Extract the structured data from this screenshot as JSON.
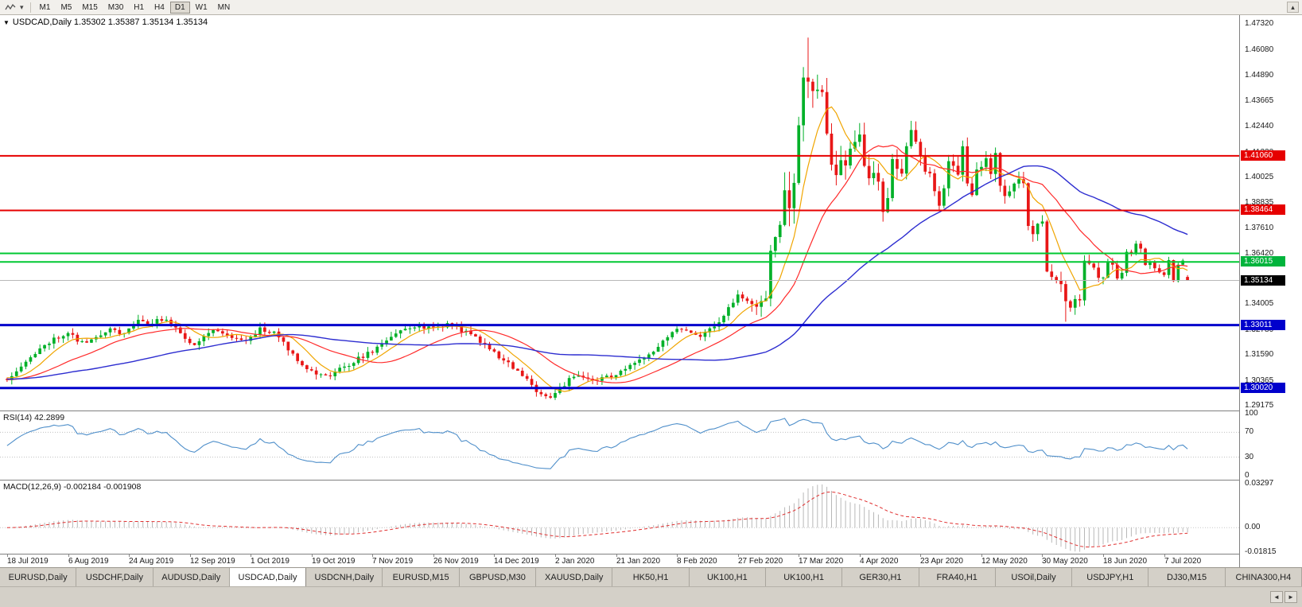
{
  "icons": {
    "chevron_down": "▾",
    "collapse_up": "▴",
    "title_marker": "▼",
    "tab_prev": "◄",
    "tab_next": "►"
  },
  "toolbar": {
    "timeframes": [
      "M1",
      "M5",
      "M15",
      "M30",
      "H1",
      "H4",
      "D1",
      "W1",
      "MN"
    ],
    "active_timeframe": "D1"
  },
  "chart": {
    "symbol": "USDCAD",
    "period": "Daily",
    "title": "USDCAD,Daily 1.35302 1.35387 1.35134 1.35134"
  },
  "panels": {
    "rsi_label": "RSI(14) 42.2899",
    "macd_label": "MACD(12,26,9) -0.002184 -0.001908"
  },
  "price_axis": {
    "ticks": [
      "1.47320",
      "1.46080",
      "1.44890",
      "1.43665",
      "1.42440",
      "1.41220",
      "1.40025",
      "1.38835",
      "1.37610",
      "1.36420",
      "1.35195",
      "1.34005",
      "1.32780",
      "1.31590",
      "1.30365",
      "1.29175"
    ],
    "badges": [
      {
        "value": "1.41060",
        "price": 1.4106,
        "color": "#e60000"
      },
      {
        "value": "1.38464",
        "price": 1.38464,
        "color": "#e60000"
      },
      {
        "value": "1.36015",
        "price": 1.36015,
        "color": "#00b43c"
      },
      {
        "value": "1.35134",
        "price": 1.35134,
        "color": "#000000"
      },
      {
        "value": "1.33011",
        "price": 1.33011,
        "color": "#0000cc"
      },
      {
        "value": "1.30020",
        "price": 1.3002,
        "color": "#0000cc"
      }
    ]
  },
  "rsi_axis": [
    {
      "label": "100",
      "value": 100
    },
    {
      "label": "70",
      "value": 70
    },
    {
      "label": "30",
      "value": 30
    },
    {
      "label": "0",
      "value": 0
    }
  ],
  "macd_axis": [
    {
      "label": "0.03297",
      "value": 0.03297
    },
    {
      "label": "0.00",
      "value": 0
    },
    {
      "label": "-0.01815",
      "value": -0.01815
    }
  ],
  "date_axis": [
    "18 Jul 2019",
    "6 Aug 2019",
    "24 Aug 2019",
    "12 Sep 2019",
    "1 Oct 2019",
    "19 Oct 2019",
    "7 Nov 2019",
    "26 Nov 2019",
    "14 Dec 2019",
    "2 Jan 2020",
    "21 Jan 2020",
    "8 Feb 2020",
    "27 Feb 2020",
    "17 Mar 2020",
    "4 Apr 2020",
    "23 Apr 2020",
    "12 May 2020",
    "30 May 2020",
    "18 Jun 2020",
    "7 Jul 2020"
  ],
  "hlines": [
    {
      "price": 1.35134,
      "color": "#b8b8b8",
      "width": 1
    },
    {
      "price": 1.4106,
      "color": "#e60000",
      "width": 2
    },
    {
      "price": 1.38464,
      "color": "#e60000",
      "width": 2
    },
    {
      "price": 1.3642,
      "color": "#00c832",
      "width": 2
    },
    {
      "price": 1.36015,
      "color": "#00c832",
      "width": 2
    },
    {
      "price": 1.33011,
      "color": "#0000cc",
      "width": 3
    },
    {
      "price": 1.3002,
      "color": "#0000cc",
      "width": 3
    }
  ],
  "tabs": {
    "items": [
      "EURUSD,Daily",
      "USDCHF,Daily",
      "AUDUSD,Daily",
      "USDCAD,Daily",
      "USDCNH,Daily",
      "EURUSD,M15",
      "GBPUSD,M30",
      "XAUUSD,Daily",
      "HK50,H1",
      "UK100,H1",
      "UK100,H1",
      "GER30,H1",
      "FRA40,H1",
      "USOil,Daily",
      "USDJPY,H1",
      "DJ30,M15",
      "CHINA300,H4"
    ],
    "active_index": 3
  },
  "chart_data": {
    "type": "candlestick",
    "symbol": "USDCAD",
    "timeframe": "Daily",
    "title": "USDCAD,Daily",
    "current_price": 1.35134,
    "last_candle": {
      "o": 1.35302,
      "h": 1.35387,
      "l": 1.35134,
      "c": 1.35134
    },
    "key_levels": [
      1.4106,
      1.38464,
      1.3642,
      1.36015,
      1.33011,
      1.3002
    ],
    "price_range": [
      1.2895,
      1.4775
    ],
    "macd_range": [
      -0.019537,
      0.035415
    ],
    "n_candles": 253,
    "seed": 11,
    "colors": {
      "up": "#00b028",
      "down": "#e81717",
      "ma_fast": "#f0a500",
      "ma_mid": "#ff2a2a",
      "ma_slow": "#2d2dd0",
      "rsi": "#4f8fca",
      "rsi_level": "#c0c0c0",
      "macd_hist": "#b8b8b8",
      "macd_signal": "#e03030"
    },
    "ma_periods": {
      "fast": 8,
      "mid": 21,
      "slow": 55
    },
    "rsi_period": 14,
    "rsi_levels": [
      70,
      30
    ],
    "macd_params": [
      12,
      26,
      9
    ],
    "macd_pos_peak": 0.0325,
    "macd_neg_peak": 0.0181,
    "forced_extremes": [
      {
        "index": 116,
        "low": 1.2952
      },
      {
        "index": 171,
        "high": 1.4668
      },
      {
        "index": 226,
        "low": 1.3317
      }
    ],
    "price_anchors": [
      [
        0,
        1.3045
      ],
      [
        2,
        1.309
      ],
      [
        4,
        1.313
      ],
      [
        6,
        1.316
      ],
      [
        8,
        1.321
      ],
      [
        10,
        1.3235
      ],
      [
        13,
        1.327
      ],
      [
        15,
        1.323
      ],
      [
        17,
        1.3215
      ],
      [
        19,
        1.324
      ],
      [
        22,
        1.329
      ],
      [
        24,
        1.3265
      ],
      [
        26,
        1.3275
      ],
      [
        28,
        1.333
      ],
      [
        30,
        1.33
      ],
      [
        32,
        1.332
      ],
      [
        34,
        1.3335
      ],
      [
        36,
        1.329
      ],
      [
        38,
        1.323
      ],
      [
        40,
        1.3215
      ],
      [
        42,
        1.325
      ],
      [
        44,
        1.328
      ],
      [
        46,
        1.3265
      ],
      [
        48,
        1.3245
      ],
      [
        50,
        1.3225
      ],
      [
        52,
        1.3245
      ],
      [
        54,
        1.3285
      ],
      [
        56,
        1.327
      ],
      [
        58,
        1.325
      ],
      [
        60,
        1.319
      ],
      [
        62,
        1.314
      ],
      [
        64,
        1.3095
      ],
      [
        66,
        1.307
      ],
      [
        68,
        1.3055
      ],
      [
        70,
        1.308
      ],
      [
        72,
        1.31
      ],
      [
        74,
        1.313
      ],
      [
        76,
        1.3155
      ],
      [
        78,
        1.3175
      ],
      [
        80,
        1.3215
      ],
      [
        82,
        1.325
      ],
      [
        84,
        1.327
      ],
      [
        86,
        1.329
      ],
      [
        88,
        1.33
      ],
      [
        90,
        1.3285
      ],
      [
        92,
        1.3295
      ],
      [
        94,
        1.3305
      ],
      [
        96,
        1.329
      ],
      [
        98,
        1.3265
      ],
      [
        100,
        1.3245
      ],
      [
        102,
        1.3205
      ],
      [
        104,
        1.317
      ],
      [
        106,
        1.3135
      ],
      [
        108,
        1.31
      ],
      [
        110,
        1.306
      ],
      [
        112,
        1.301
      ],
      [
        114,
        1.2975
      ],
      [
        116,
        1.296
      ],
      [
        118,
        1.3
      ],
      [
        120,
        1.304
      ],
      [
        122,
        1.3055
      ],
      [
        124,
        1.3045
      ],
      [
        126,
        1.304
      ],
      [
        128,
        1.3055
      ],
      [
        130,
        1.3065
      ],
      [
        132,
        1.309
      ],
      [
        134,
        1.3115
      ],
      [
        136,
        1.3145
      ],
      [
        138,
        1.3185
      ],
      [
        140,
        1.323
      ],
      [
        142,
        1.327
      ],
      [
        144,
        1.329
      ],
      [
        146,
        1.3265
      ],
      [
        148,
        1.3255
      ],
      [
        150,
        1.328
      ],
      [
        152,
        1.332
      ],
      [
        154,
        1.338
      ],
      [
        156,
        1.344
      ],
      [
        158,
        1.341
      ],
      [
        160,
        1.3385
      ],
      [
        162,
        1.342
      ],
      [
        163,
        1.368
      ],
      [
        164,
        1.372
      ],
      [
        165,
        1.379
      ],
      [
        166,
        1.394
      ],
      [
        167,
        1.382
      ],
      [
        168,
        1.401
      ],
      [
        169,
        1.422
      ],
      [
        170,
        1.45
      ],
      [
        171,
        1.445
      ],
      [
        172,
        1.443
      ],
      [
        173,
        1.445
      ],
      [
        174,
        1.443
      ],
      [
        175,
        1.418
      ],
      [
        176,
        1.406
      ],
      [
        177,
        1.399
      ],
      [
        178,
        1.409
      ],
      [
        179,
        1.406
      ],
      [
        180,
        1.413
      ],
      [
        181,
        1.416
      ],
      [
        182,
        1.421
      ],
      [
        183,
        1.408
      ],
      [
        184,
        1.402
      ],
      [
        185,
        1.401
      ],
      [
        186,
        1.396
      ],
      [
        187,
        1.386
      ],
      [
        188,
        1.39
      ],
      [
        189,
        1.409
      ],
      [
        190,
        1.404
      ],
      [
        191,
        1.4
      ],
      [
        192,
        1.415
      ],
      [
        193,
        1.422
      ],
      [
        194,
        1.416
      ],
      [
        195,
        1.409
      ],
      [
        196,
        1.403
      ],
      [
        197,
        1.401
      ],
      [
        198,
        1.395
      ],
      [
        199,
        1.388
      ],
      [
        200,
        1.394
      ],
      [
        201,
        1.409
      ],
      [
        202,
        1.407
      ],
      [
        203,
        1.403
      ],
      [
        204,
        1.414
      ],
      [
        205,
        1.398
      ],
      [
        206,
        1.392
      ],
      [
        207,
        1.404
      ],
      [
        208,
        1.407
      ],
      [
        209,
        1.411
      ],
      [
        210,
        1.403
      ],
      [
        211,
        1.411
      ],
      [
        212,
        1.396
      ],
      [
        213,
        1.39
      ],
      [
        214,
        1.393
      ],
      [
        215,
        1.397
      ],
      [
        216,
        1.4
      ],
      [
        217,
        1.398
      ],
      [
        218,
        1.378
      ],
      [
        219,
        1.375
      ],
      [
        220,
        1.377
      ],
      [
        221,
        1.378
      ],
      [
        222,
        1.357
      ],
      [
        223,
        1.352
      ],
      [
        224,
        1.35
      ],
      [
        225,
        1.349
      ],
      [
        226,
        1.342
      ],
      [
        227,
        1.337
      ],
      [
        228,
        1.342
      ],
      [
        229,
        1.341
      ],
      [
        230,
        1.362
      ],
      [
        231,
        1.359
      ],
      [
        232,
        1.356
      ],
      [
        233,
        1.353
      ],
      [
        234,
        1.354
      ],
      [
        235,
        1.36
      ],
      [
        236,
        1.36
      ],
      [
        237,
        1.353
      ],
      [
        238,
        1.355
      ],
      [
        239,
        1.364
      ],
      [
        240,
        1.363
      ],
      [
        241,
        1.369
      ],
      [
        242,
        1.367
      ],
      [
        243,
        1.358
      ],
      [
        244,
        1.359
      ],
      [
        245,
        1.357
      ],
      [
        246,
        1.355
      ],
      [
        247,
        1.354
      ],
      [
        248,
        1.361
      ],
      [
        249,
        1.351
      ],
      [
        250,
        1.359
      ],
      [
        251,
        1.361
      ],
      [
        252,
        1.35134
      ]
    ],
    "vol_anchors": [
      [
        0,
        0.007
      ],
      [
        150,
        0.007
      ],
      [
        158,
        0.009
      ],
      [
        163,
        0.018
      ],
      [
        166,
        0.026
      ],
      [
        172,
        0.024
      ],
      [
        178,
        0.02
      ],
      [
        185,
        0.016
      ],
      [
        200,
        0.013
      ],
      [
        212,
        0.011
      ],
      [
        222,
        0.013
      ],
      [
        230,
        0.01
      ],
      [
        238,
        0.008
      ],
      [
        246,
        0.006
      ],
      [
        252,
        0.004
      ]
    ]
  }
}
